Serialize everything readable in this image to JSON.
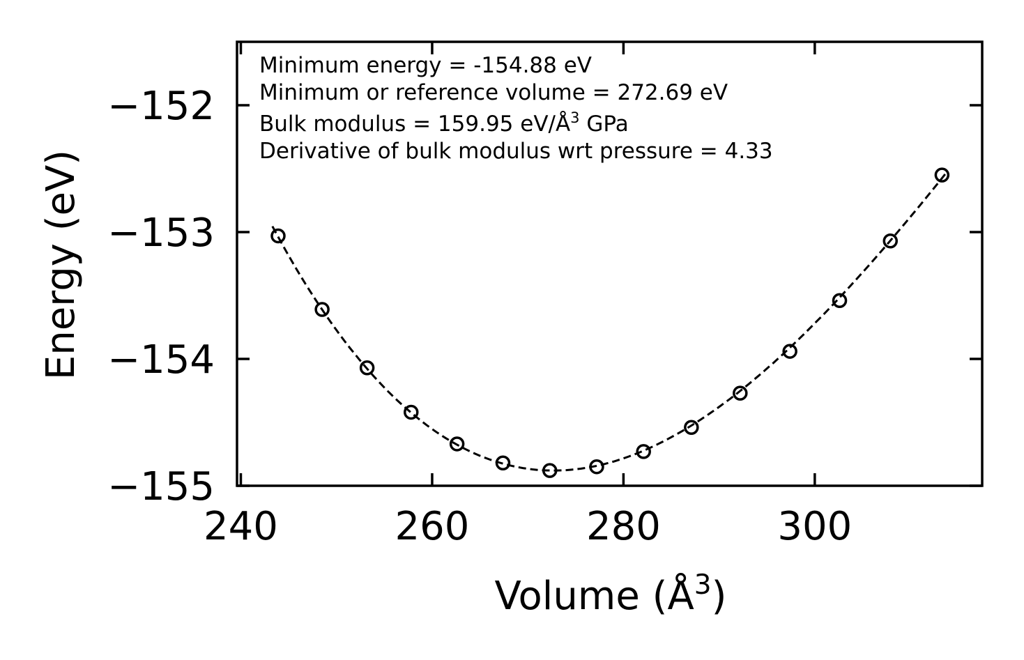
{
  "chart_data": {
    "type": "scatter",
    "title": "",
    "xlabel": "Volume (Å",
    "xlabel_sup": "3",
    "xlabel_end": ")",
    "ylabel": "Energy (eV)",
    "xlim": [
      239.6,
      317.5
    ],
    "ylim": [
      -155.0,
      -151.5
    ],
    "xticks": [
      240,
      260,
      280,
      300
    ],
    "xtick_labels": [
      "240",
      "260",
      "280",
      "300"
    ],
    "yticks": [
      -155,
      -154,
      -153,
      -152
    ],
    "ytick_labels": [
      "−155",
      "−154",
      "−153",
      "−152"
    ],
    "annotations": {
      "line1": "Minimum energy = -154.88 eV",
      "line2": "Minimum or reference volume = 272.69 eV",
      "line3_pre": "Bulk modulus = 159.95 eV/Å",
      "line3_sup": "3",
      "line3_post": " GPa",
      "line4": "Derivative of bulk modulus wrt pressure = 4.33"
    },
    "series": [
      {
        "name": "data",
        "marker": "open-circle",
        "color": "#000000",
        "x": [
          243.9,
          248.5,
          253.2,
          257.8,
          262.6,
          267.4,
          272.3,
          277.2,
          282.1,
          287.1,
          292.2,
          297.4,
          302.6,
          307.9,
          313.3
        ],
        "y": [
          -153.03,
          -153.61,
          -154.07,
          -154.42,
          -154.67,
          -154.82,
          -154.88,
          -154.85,
          -154.73,
          -154.54,
          -154.27,
          -153.94,
          -153.54,
          -153.07,
          -152.55
        ]
      },
      {
        "name": "fit",
        "line_style": "dashed",
        "color": "#000000",
        "x0": 272.69,
        "y0": -154.88,
        "x_range": [
          243.3,
          313.8
        ]
      }
    ],
    "grid": false,
    "legend": "none"
  }
}
